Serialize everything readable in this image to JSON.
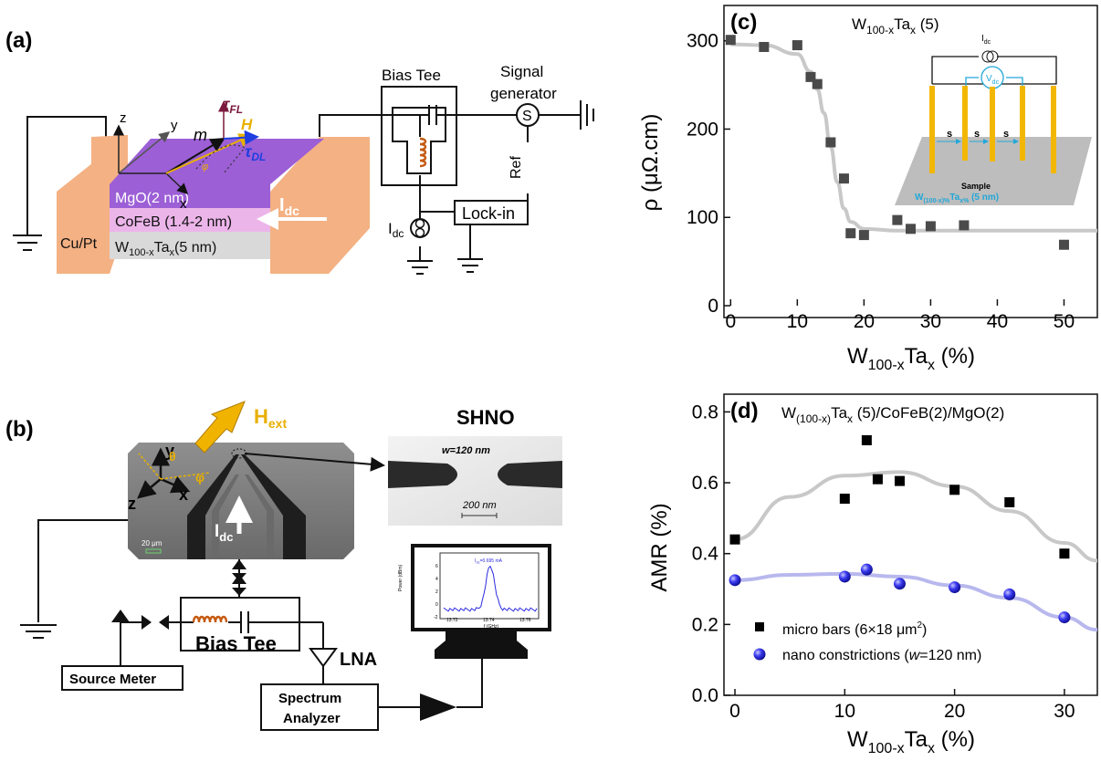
{
  "panel_labels": {
    "a": "(a)",
    "b": "(b)",
    "c": "(c)",
    "d": "(d)"
  },
  "colors": {
    "mgo": "#9c5fd6",
    "cofeb": "#ecb5ea",
    "wta": "#d9d9d9",
    "cupt": "#f4b183",
    "h_arrow": "#e8b000",
    "tdl": "#1f3fe0",
    "tfl": "#7b1a3e",
    "coil": "#c55a11",
    "inset_probe": "#f2b705",
    "inset_text": "#22a7d8",
    "fit_c": "#c8c8c8",
    "fit_d1": "#c8c8c8",
    "fit_d2": "#b8b8ee",
    "blue_points": "#2a2ae0"
  },
  "panel_a": {
    "layers": {
      "mgo": "MgO(2 nm)",
      "cofeb": "CoFeB (1.4-2 nm)",
      "wta_main": "W",
      "wta_sub1": "100-x",
      "wta_mid": "Ta",
      "wta_sub2": "x",
      "wta_end": "(5 nm)"
    },
    "contact": "Cu/Pt",
    "idc_main": "I",
    "idc_sub": "dc",
    "axes": {
      "z": "z",
      "y": "y",
      "x": "x"
    },
    "m": "m",
    "h": "H",
    "tfl_main": "τ",
    "tfl_sub": "FL",
    "tdl_main": "τ",
    "tdl_sub": "DL",
    "phi": "φ",
    "bias_tee": "Bias Tee",
    "signal_gen_1": "Signal",
    "signal_gen_2": "generator",
    "ref": "Ref",
    "lockin": "Lock-in",
    "idc_src_main": "I",
    "idc_src_sub": "dc"
  },
  "panel_b": {
    "hext_main": "H",
    "hext_sub": "ext",
    "axes": {
      "y": "y",
      "z": "z",
      "x": "x",
      "theta": "θ",
      "phi": "φ"
    },
    "idc_main": "I",
    "idc_sub": "dc",
    "scale_sem": "20 μm",
    "shno_title": "SHNO",
    "width_label": "w=120 nm",
    "scale_tem": "200 nm",
    "bias_tee": "Bias Tee",
    "lna": "LNA",
    "source_meter": "Source Meter",
    "spectrum_1": "Spectrum",
    "spectrum_2": "Analyzer",
    "screen": {
      "ylabel": "Power (dBm)",
      "xlabel": "f (GHz)",
      "yticks": [
        "6",
        "4",
        "2",
        "0",
        "-2"
      ],
      "xticks": [
        "13.72",
        "13.74",
        "13.76"
      ],
      "annotation": "I",
      "annotation_sub": "dc",
      "annotation_end": "=0.695 mA"
    }
  },
  "chart_data": [
    {
      "type": "scatter",
      "panel": "c",
      "title": "W",
      "title_sub1": "100-x",
      "title_mid": "Ta",
      "title_sub2": "x",
      "title_end": " (5)",
      "xlabel": "W",
      "xlabel_sub1": "100-x",
      "xlabel_mid": "Ta",
      "xlabel_sub2": "x",
      "xlabel_end": " (%)",
      "ylabel": "ρ (μΩ.cm)",
      "xlim": [
        -1,
        55
      ],
      "ylim": [
        0,
        340
      ],
      "xticks": [
        0,
        10,
        20,
        30,
        40,
        50
      ],
      "yticks": [
        0,
        100,
        200,
        300
      ],
      "series": [
        {
          "marker": "square",
          "color": "#4a4a4a",
          "x": [
            0,
            5,
            10,
            12,
            13,
            15,
            17,
            18,
            20,
            25,
            27,
            30,
            35,
            50
          ],
          "y": [
            301,
            293,
            295,
            259,
            251,
            185,
            144,
            82,
            80,
            97,
            87,
            90,
            91,
            69
          ]
        },
        {
          "marker": "line-fit",
          "color": "#c8c8c8",
          "x": [
            0,
            5,
            10,
            12,
            13,
            14,
            15,
            16,
            17,
            18,
            20,
            25,
            30,
            40,
            55
          ],
          "y": [
            296,
            295,
            285,
            265,
            245,
            218,
            180,
            140,
            110,
            95,
            87,
            85,
            85,
            85,
            85
          ]
        }
      ],
      "inset": {
        "idc": "I",
        "idc_sub": "dc",
        "vdc": "V",
        "vdc_sub": "dc",
        "s": "s",
        "sample": "Sample",
        "sample_line": "W",
        "sample_sub1": "(100-x)%",
        "sample_mid": "Ta",
        "sample_sub2": "x%",
        "sample_end": " (5 nm)"
      }
    },
    {
      "type": "scatter",
      "panel": "d",
      "title": "W",
      "title_sub1": "(100-x)",
      "title_mid": "Ta",
      "title_sub2": "x",
      "title_end": " (5)/CoFeB(2)/MgO(2)",
      "xlabel": "W",
      "xlabel_sub1": "100-x",
      "xlabel_mid": "Ta",
      "xlabel_sub2": "x",
      "xlabel_end": " (%)",
      "ylabel": "AMR (%)",
      "xlim": [
        -1,
        33
      ],
      "ylim": [
        0.0,
        0.85
      ],
      "xticks": [
        0,
        10,
        20,
        30
      ],
      "yticks": [
        "0.0",
        "0.2",
        "0.4",
        "0.6",
        "0.8"
      ],
      "series": [
        {
          "name": "micro bars (6×18 μm²)",
          "legend_main": "micro bars (6×18 ",
          "legend_unit": "μm",
          "legend_sup": "2",
          "legend_end": ")",
          "marker": "square",
          "color": "#000000",
          "x": [
            0,
            10,
            12,
            13,
            15,
            20,
            25,
            30
          ],
          "y": [
            0.44,
            0.555,
            0.72,
            0.61,
            0.605,
            0.58,
            0.545,
            0.4
          ]
        },
        {
          "name": "nano constrictions (w=120 nm)",
          "legend_main": "nano constrictions (",
          "legend_italic": "w",
          "legend_end": "=120 nm)",
          "marker": "circle",
          "color": "#2a2ae0",
          "x": [
            0,
            10,
            12,
            15,
            20,
            25,
            30
          ],
          "y": [
            0.325,
            0.335,
            0.355,
            0.315,
            0.305,
            0.285,
            0.22
          ]
        },
        {
          "marker": "line-fit",
          "color": "#c8c8c8",
          "x": [
            0,
            5,
            10,
            15,
            20,
            25,
            30,
            33
          ],
          "y": [
            0.44,
            0.56,
            0.62,
            0.63,
            0.59,
            0.52,
            0.43,
            0.38
          ]
        },
        {
          "marker": "line-fit",
          "color": "#b8b8ee",
          "x": [
            0,
            5,
            10,
            15,
            20,
            25,
            30,
            33
          ],
          "y": [
            0.325,
            0.34,
            0.343,
            0.335,
            0.31,
            0.275,
            0.22,
            0.185
          ]
        }
      ]
    }
  ]
}
